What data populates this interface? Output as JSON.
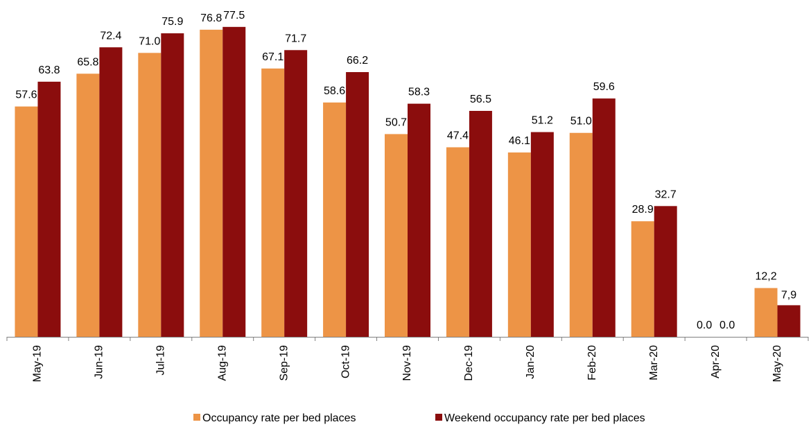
{
  "chart_data": {
    "type": "bar",
    "categories": [
      "May-19",
      "Jun-19",
      "Jul-19",
      "Aug-19",
      "Sep-19",
      "Oct-19",
      "Nov-19",
      "Dec-19",
      "Jan-20",
      "Feb-20",
      "Mar-20",
      "Apr-20",
      "May-20"
    ],
    "series": [
      {
        "name": "Occupancy rate per bed places",
        "values": [
          57.6,
          65.8,
          71.0,
          76.8,
          67.1,
          58.6,
          50.7,
          47.4,
          46.1,
          51.0,
          28.9,
          0.0,
          12.2
        ],
        "labels": [
          "57.6",
          "65.8",
          "71.0",
          "76.8",
          "67.1",
          "58.6",
          "50.7",
          "47.4",
          "46.1",
          "51.0",
          "28.9",
          "0.0",
          "12,2"
        ],
        "color": "#ED9446"
      },
      {
        "name": "Weekend occupancy rate per bed places",
        "values": [
          63.8,
          72.4,
          75.9,
          77.5,
          71.7,
          66.2,
          58.3,
          56.5,
          51.2,
          59.6,
          32.7,
          0.0,
          7.9
        ],
        "labels": [
          "63.8",
          "72.4",
          "75.9",
          "77.5",
          "71.7",
          "66.2",
          "58.3",
          "56.5",
          "51.2",
          "59.6",
          "32.7",
          "0.0",
          "7,9"
        ],
        "color": "#8B0D0D"
      }
    ],
    "highlight_category": "Mar-20",
    "highlight_label_color": "#FF0000",
    "label_color": "#000000",
    "ylim": [
      0,
      80
    ],
    "grid": false,
    "legend_position": "bottom-center"
  }
}
